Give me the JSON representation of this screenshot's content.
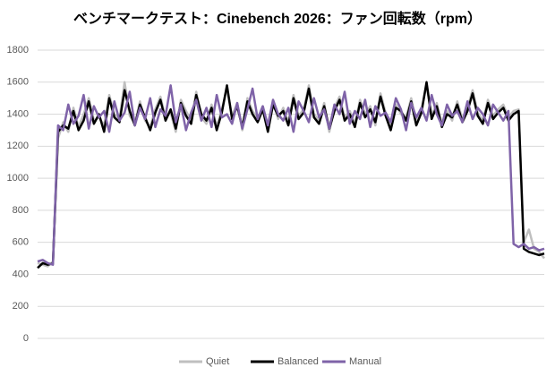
{
  "chart_data": {
    "type": "line",
    "title": "ベンチマークテスト：Cinebench 2026：ファン回転数（rpm）",
    "ylim": [
      0,
      1800
    ],
    "yticks": [
      0,
      200,
      400,
      600,
      800,
      1000,
      1200,
      1400,
      1600,
      1800
    ],
    "grid": true,
    "legend": "bottom",
    "series": [
      {
        "name": "Quiet",
        "color": "#bfbfbf",
        "values": [
          470,
          460,
          450,
          480,
          1250,
          1350,
          1290,
          1440,
          1320,
          1400,
          1500,
          1360,
          1380,
          1330,
          1520,
          1400,
          1370,
          1600,
          1390,
          1340,
          1480,
          1360,
          1320,
          1430,
          1510,
          1380,
          1410,
          1290,
          1490,
          1420,
          1360,
          1540,
          1380,
          1340,
          1460,
          1320,
          1430,
          1560,
          1390,
          1470,
          1300,
          1500,
          1420,
          1370,
          1450,
          1310,
          1480,
          1370,
          1440,
          1350,
          1520,
          1390,
          1430,
          1580,
          1400,
          1360,
          1470,
          1290,
          1440,
          1510,
          1380,
          1420,
          1340,
          1490,
          1400,
          1450,
          1330,
          1530,
          1410,
          1320,
          1460,
          1400,
          1380,
          1500,
          1350,
          1430,
          1580,
          1390,
          1470,
          1340,
          1420,
          1360,
          1480,
          1370,
          1440,
          1550,
          1410,
          1360,
          1490,
          1390,
          1430,
          1460,
          1380,
          1420,
          1430,
          600,
          680,
          560,
          540,
          500
        ]
      },
      {
        "name": "Balanced",
        "color": "#000000",
        "values": [
          440,
          470,
          460,
          470,
          1290,
          1330,
          1310,
          1420,
          1300,
          1360,
          1480,
          1340,
          1400,
          1290,
          1500,
          1380,
          1350,
          1550,
          1420,
          1330,
          1460,
          1380,
          1300,
          1410,
          1490,
          1360,
          1430,
          1310,
          1470,
          1390,
          1340,
          1520,
          1400,
          1360,
          1440,
          1300,
          1410,
          1580,
          1370,
          1450,
          1320,
          1480,
          1400,
          1350,
          1430,
          1290,
          1460,
          1390,
          1420,
          1330,
          1500,
          1370,
          1410,
          1560,
          1380,
          1340,
          1450,
          1310,
          1420,
          1490,
          1360,
          1400,
          1320,
          1470,
          1380,
          1430,
          1350,
          1510,
          1390,
          1300,
          1440,
          1420,
          1360,
          1480,
          1330,
          1410,
          1600,
          1370,
          1450,
          1320,
          1400,
          1380,
          1460,
          1350,
          1420,
          1530,
          1390,
          1340,
          1470,
          1370,
          1410,
          1440,
          1360,
          1400,
          1420,
          560,
          540,
          530,
          520,
          530
        ]
      },
      {
        "name": "Manual",
        "color": "#7f63a8",
        "values": [
          480,
          490,
          470,
          460,
          1330,
          1300,
          1460,
          1340,
          1390,
          1520,
          1310,
          1450,
          1380,
          1420,
          1290,
          1480,
          1360,
          1410,
          1540,
          1330,
          1440,
          1370,
          1500,
          1320,
          1430,
          1390,
          1580,
          1350,
          1460,
          1300,
          1410,
          1490,
          1360,
          1440,
          1320,
          1520,
          1380,
          1400,
          1340,
          1470,
          1310,
          1430,
          1560,
          1370,
          1450,
          1330,
          1490,
          1400,
          1360,
          1440,
          1290,
          1480,
          1420,
          1350,
          1500,
          1380,
          1430,
          1310,
          1460,
          1400,
          1540,
          1340,
          1420,
          1370,
          1490,
          1320,
          1450,
          1390,
          1410,
          1350,
          1500,
          1430,
          1300,
          1470,
          1380,
          1440,
          1360,
          1520,
          1400,
          1330,
          1460,
          1390,
          1420,
          1350,
          1480,
          1370,
          1440,
          1400,
          1330,
          1460,
          1410,
          1360,
          1420,
          590,
          570,
          590,
          560,
          570,
          550,
          560
        ]
      }
    ]
  }
}
